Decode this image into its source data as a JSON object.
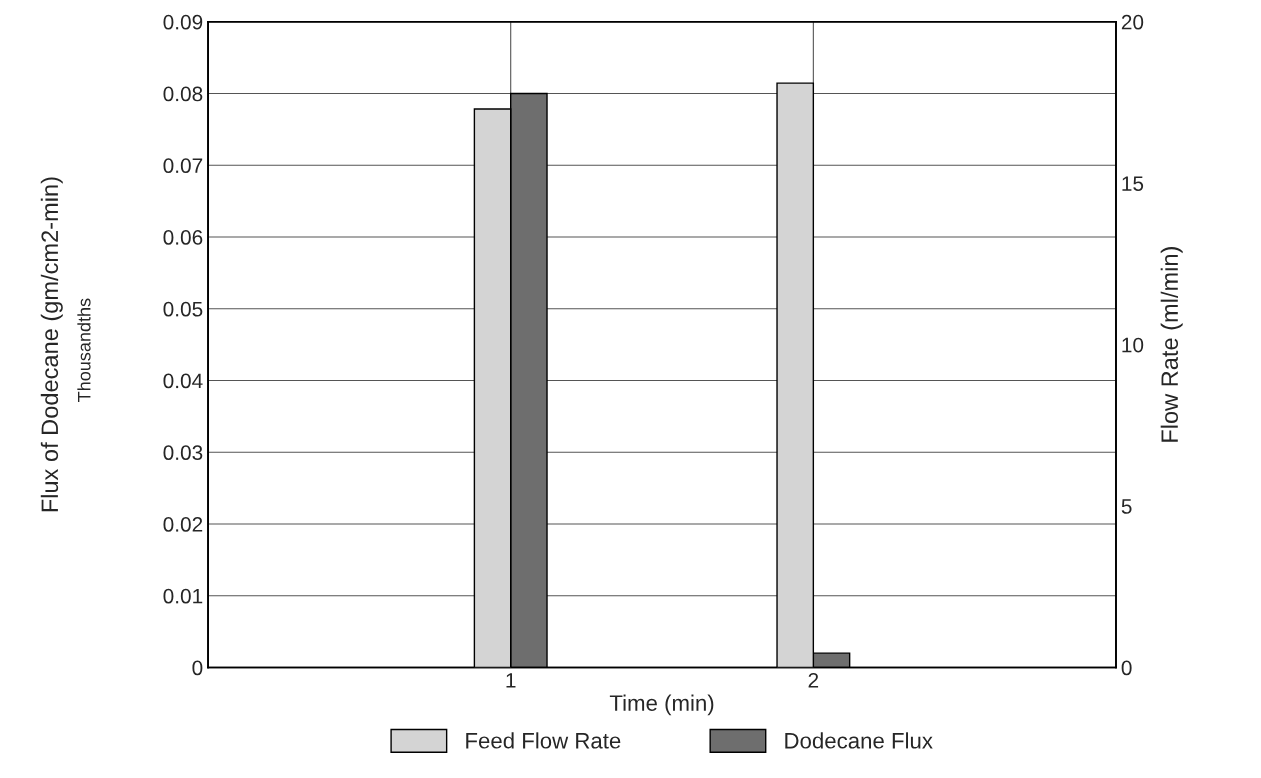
{
  "chart_data": {
    "type": "bar",
    "categories": [
      "1",
      "2"
    ],
    "xlabel": "Time (min)",
    "ylabel": "Flux of Dodecane (gm/cm2-min)",
    "y2label": "Flow Rate (ml/min)",
    "annotations": [
      "Thousandths"
    ],
    "series": [
      {
        "name": "Feed Flow Rate",
        "color": "#d4d4d4",
        "axis": "y2",
        "values": [
          17.3,
          18.1
        ]
      },
      {
        "name": "Dodecane Flux",
        "color": "#6e6e6e",
        "values": [
          0.08,
          0.002
        ]
      }
    ],
    "ylim": [
      0,
      0.09
    ],
    "yticks": [
      0,
      0.01,
      0.02,
      0.03,
      0.04,
      0.05,
      0.06,
      0.07,
      0.08,
      0.09
    ],
    "y2lim": [
      0,
      20
    ],
    "y2ticks": [
      0,
      5,
      10,
      15,
      20
    ],
    "grid": true,
    "legend": "bottom"
  }
}
